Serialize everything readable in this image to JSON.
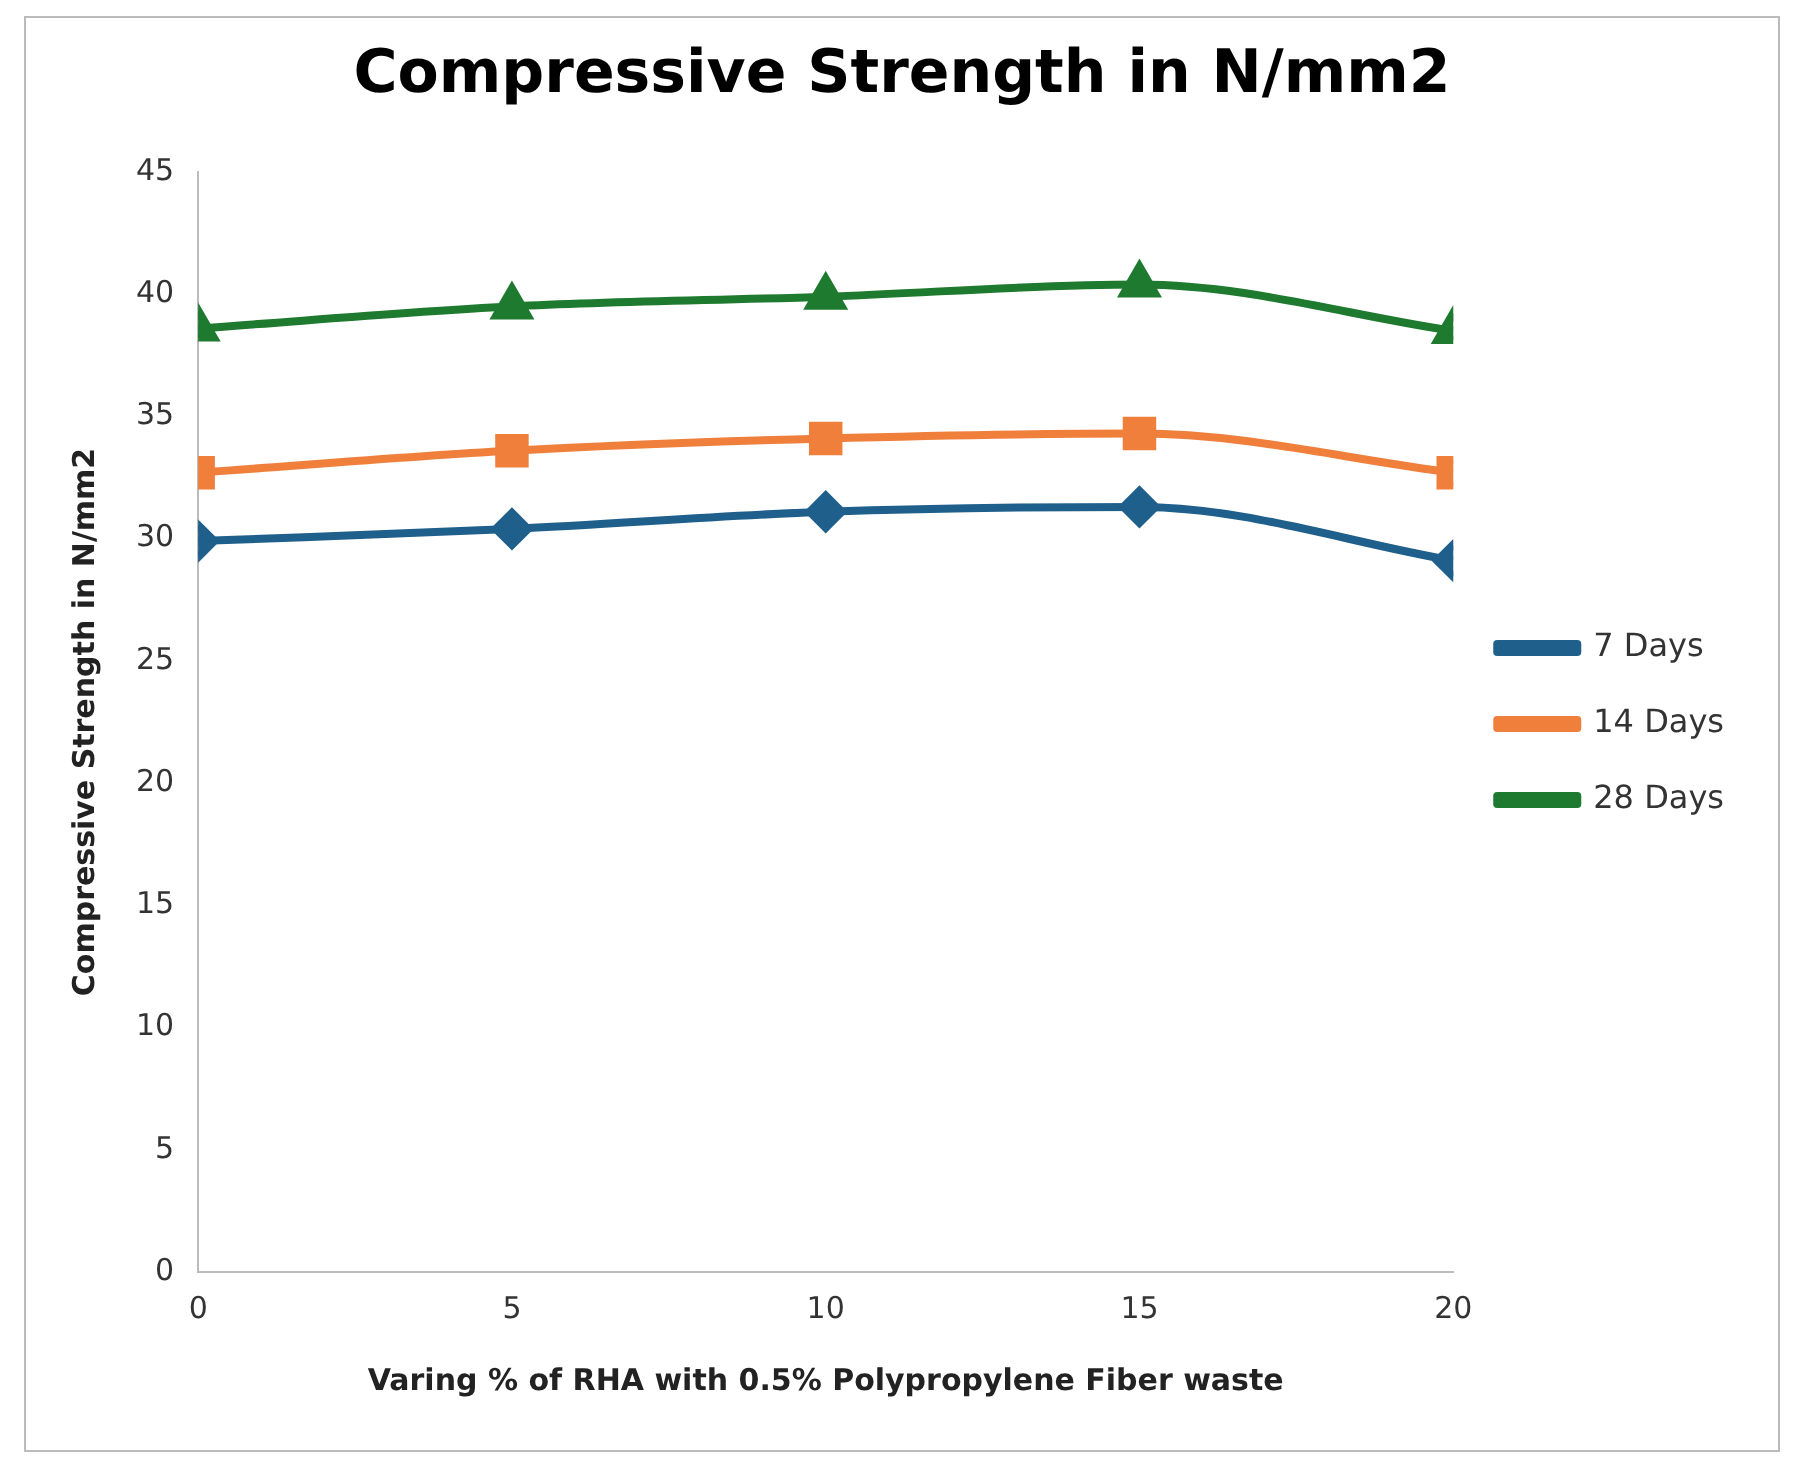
{
  "chart_data": {
    "type": "line",
    "title": "Compressive Strength in N/mm2",
    "xlabel": "Varing % of RHA with 0.5% Polypropylene Fiber waste",
    "ylabel": "Compressive Strength in N/mm2",
    "x": [
      0,
      5,
      10,
      15,
      20
    ],
    "xlim": [
      0,
      20
    ],
    "xticks": [
      0,
      5,
      10,
      15,
      20
    ],
    "ylim": [
      0,
      45
    ],
    "yticks": [
      0,
      5,
      10,
      15,
      20,
      25,
      30,
      35,
      40,
      45
    ],
    "grid": false,
    "legend": "right",
    "series": [
      {
        "name": "7 Days",
        "color": "#1f5f8b",
        "marker": "diamond",
        "values": [
          29.9,
          30.4,
          31.1,
          31.3,
          29.1
        ]
      },
      {
        "name": "14 Days",
        "color": "#f07f3c",
        "marker": "square",
        "values": [
          32.7,
          33.6,
          34.1,
          34.3,
          32.7
        ]
      },
      {
        "name": "28 Days",
        "color": "#1e7a2e",
        "marker": "triangle",
        "values": [
          38.6,
          39.5,
          39.9,
          40.4,
          38.5
        ]
      }
    ]
  }
}
